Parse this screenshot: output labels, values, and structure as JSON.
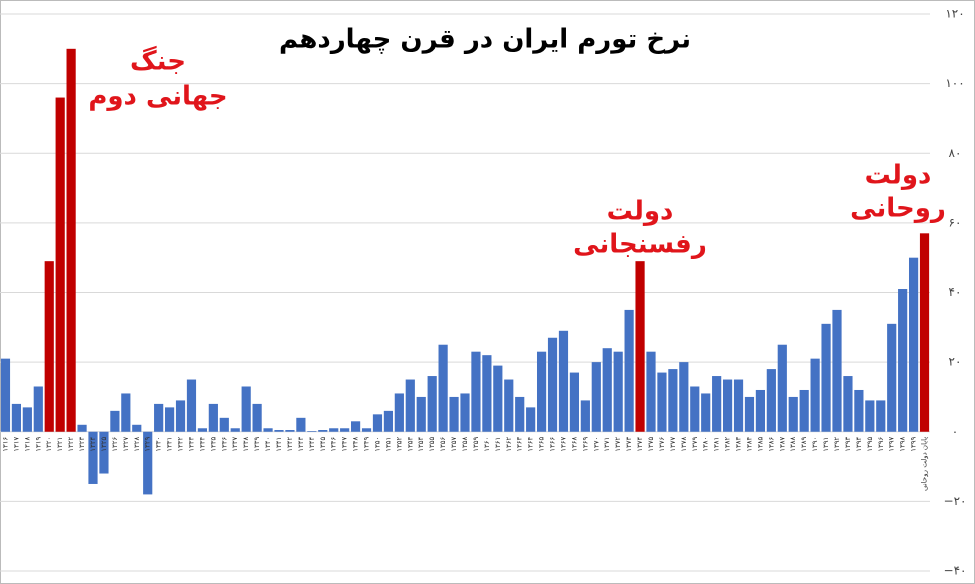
{
  "chart_data": {
    "type": "bar",
    "title": "نرخ تورم ایران در قرن چهاردهم",
    "categories": [
      "۱۳۱۶",
      "۱۳۱۷",
      "۱۳۱۸",
      "۱۳۱۹",
      "۱۳۲۰",
      "۱۳۲۱",
      "۱۳۲۲",
      "۱۳۲۳",
      "۱۳۲۴",
      "۱۳۲۵",
      "۱۳۲۶",
      "۱۳۲۷",
      "۱۳۲۸",
      "۱۳۲۹",
      "۱۳۳۰",
      "۱۳۳۱",
      "۱۳۳۲",
      "۱۳۳۳",
      "۱۳۳۴",
      "۱۳۳۵",
      "۱۳۳۶",
      "۱۳۳۷",
      "۱۳۳۸",
      "۱۳۳۹",
      "۱۳۴۰",
      "۱۳۴۱",
      "۱۳۴۲",
      "۱۳۴۳",
      "۱۳۴۴",
      "۱۳۴۵",
      "۱۳۴۶",
      "۱۳۴۷",
      "۱۳۴۸",
      "۱۳۴۹",
      "۱۳۵۰",
      "۱۳۵۱",
      "۱۳۵۲",
      "۱۳۵۳",
      "۱۳۵۴",
      "۱۳۵۵",
      "۱۳۵۶",
      "۱۳۵۷",
      "۱۳۵۸",
      "۱۳۵۹",
      "۱۳۶۰",
      "۱۳۶۱",
      "۱۳۶۲",
      "۱۳۶۳",
      "۱۳۶۴",
      "۱۳۶۵",
      "۱۳۶۶",
      "۱۳۶۷",
      "۱۳۶۸",
      "۱۳۶۹",
      "۱۳۷۰",
      "۱۳۷۱",
      "۱۳۷۲",
      "۱۳۷۳",
      "۱۳۷۴",
      "۱۳۷۵",
      "۱۳۷۶",
      "۱۳۷۷",
      "۱۳۷۸",
      "۱۳۷۹",
      "۱۳۸۰",
      "۱۳۸۱",
      "۱۳۸۲",
      "۱۳۸۳",
      "۱۳۸۴",
      "۱۳۸۵",
      "۱۳۸۶",
      "۱۳۸۷",
      "۱۳۸۸",
      "۱۳۸۹",
      "۱۳۹۰",
      "۱۳۹۱",
      "۱۳۹۲",
      "۱۳۹۳",
      "۱۳۹۴",
      "۱۳۹۵",
      "۱۳۹۶",
      "۱۳۹۷",
      "۱۳۹۸",
      "۱۳۹۹",
      "پایان دولت روحانی"
    ],
    "values": [
      21,
      8,
      7,
      13,
      49,
      96,
      110,
      2,
      -15,
      -12,
      6,
      11,
      2,
      -18,
      8,
      7,
      9,
      15,
      1,
      8,
      4,
      1,
      13,
      8,
      1,
      0.5,
      0.5,
      4,
      0.2,
      0.5,
      1,
      1,
      3,
      1,
      5,
      6,
      11,
      15,
      10,
      16,
      25,
      10,
      11,
      23,
      22,
      19,
      15,
      10,
      7,
      23,
      27,
      29,
      17,
      9,
      20,
      24,
      23,
      35,
      49,
      23,
      17,
      18,
      20,
      13,
      11,
      16,
      15,
      15,
      10,
      12,
      18,
      25,
      10,
      12,
      21,
      31,
      35,
      16,
      12,
      9,
      9,
      31,
      41,
      50,
      57
    ],
    "colors": [
      "#4472c4",
      "#4472c4",
      "#4472c4",
      "#4472c4",
      "#c00000",
      "#c00000",
      "#c00000",
      "#4472c4",
      "#4472c4",
      "#4472c4",
      "#4472c4",
      "#4472c4",
      "#4472c4",
      "#4472c4",
      "#4472c4",
      "#4472c4",
      "#4472c4",
      "#4472c4",
      "#4472c4",
      "#4472c4",
      "#4472c4",
      "#4472c4",
      "#4472c4",
      "#4472c4",
      "#4472c4",
      "#4472c4",
      "#4472c4",
      "#4472c4",
      "#4472c4",
      "#4472c4",
      "#4472c4",
      "#4472c4",
      "#4472c4",
      "#4472c4",
      "#4472c4",
      "#4472c4",
      "#4472c4",
      "#4472c4",
      "#4472c4",
      "#4472c4",
      "#4472c4",
      "#4472c4",
      "#4472c4",
      "#4472c4",
      "#4472c4",
      "#4472c4",
      "#4472c4",
      "#4472c4",
      "#4472c4",
      "#4472c4",
      "#4472c4",
      "#4472c4",
      "#4472c4",
      "#4472c4",
      "#4472c4",
      "#4472c4",
      "#4472c4",
      "#4472c4",
      "#c00000",
      "#4472c4",
      "#4472c4",
      "#4472c4",
      "#4472c4",
      "#4472c4",
      "#4472c4",
      "#4472c4",
      "#4472c4",
      "#4472c4",
      "#4472c4",
      "#4472c4",
      "#4472c4",
      "#4472c4",
      "#4472c4",
      "#4472c4",
      "#4472c4",
      "#4472c4",
      "#4472c4",
      "#4472c4",
      "#4472c4",
      "#4472c4",
      "#4472c4",
      "#4472c4",
      "#4472c4",
      "#4472c4",
      "#c00000"
    ],
    "ylim": [
      -40,
      120
    ],
    "yticks": [
      {
        "value": -40,
        "label": "−۴۰"
      },
      {
        "value": -20,
        "label": "−۲۰"
      },
      {
        "value": 0,
        "label": "۰"
      },
      {
        "value": 20,
        "label": "۲۰"
      },
      {
        "value": 40,
        "label": "۴۰"
      },
      {
        "value": 60,
        "label": "۶۰"
      },
      {
        "value": 80,
        "label": "۸۰"
      },
      {
        "value": 100,
        "label": "۱۰۰"
      },
      {
        "value": 120,
        "label": "۱۲۰"
      }
    ],
    "grid": true,
    "annotations": [
      [
        "جنگ",
        "جهانی دوم"
      ],
      [
        "دولت",
        "رفسنجانی"
      ],
      [
        "دولت",
        "روحانی"
      ]
    ]
  }
}
